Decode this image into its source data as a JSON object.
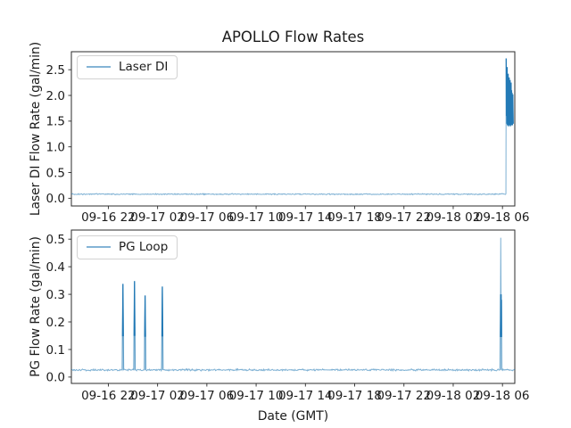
{
  "figure": {
    "xlabel": "Date (GMT)",
    "background_color": "#ffffff",
    "frame_color": "#2b2b2b",
    "line_color": "#1f77b4"
  },
  "chart_data": [
    {
      "type": "line",
      "title": "APOLLO Flow Rates",
      "ylabel": "Laser DI Flow Rate (gal/min)",
      "legend": [
        "Laser DI"
      ],
      "legend_loc": "upper left",
      "grid": false,
      "xlim": [
        0,
        36
      ],
      "ylim": [
        -0.15,
        2.85
      ],
      "x_ticks": [
        {
          "t": 3,
          "label": "09-16 22"
        },
        {
          "t": 7,
          "label": "09-17 02"
        },
        {
          "t": 11,
          "label": "09-17 06"
        },
        {
          "t": 15,
          "label": "09-17 10"
        },
        {
          "t": 19,
          "label": "09-17 14"
        },
        {
          "t": 23,
          "label": "09-17 18"
        },
        {
          "t": 27,
          "label": "09-17 22"
        },
        {
          "t": 31,
          "label": "09-18 02"
        },
        {
          "t": 35,
          "label": "09-18 06"
        }
      ],
      "y_ticks": [
        {
          "v": 0.0,
          "label": "0.0"
        },
        {
          "v": 0.5,
          "label": "0.5"
        },
        {
          "v": 1.0,
          "label": "1.0"
        },
        {
          "v": 1.5,
          "label": "1.5"
        },
        {
          "v": 2.0,
          "label": "2.0"
        },
        {
          "v": 2.5,
          "label": "2.5"
        }
      ],
      "baseline": {
        "value": 0.08,
        "from": 0,
        "to": 35.28,
        "noise": 0.013
      },
      "events": [
        {
          "points": [
            [
              35.28,
              0.09
            ],
            [
              35.3,
              2.72
            ],
            [
              35.32,
              1.6
            ],
            [
              35.34,
              2.45
            ],
            [
              35.36,
              1.45
            ],
            [
              35.38,
              2.55
            ],
            [
              35.4,
              1.42
            ],
            [
              35.42,
              2.3
            ],
            [
              35.44,
              1.48
            ],
            [
              35.46,
              2.42
            ],
            [
              35.48,
              1.4
            ],
            [
              35.5,
              2.25
            ],
            [
              35.52,
              1.45
            ],
            [
              35.54,
              2.35
            ],
            [
              35.56,
              1.42
            ],
            [
              35.58,
              2.2
            ],
            [
              35.6,
              1.5
            ],
            [
              35.62,
              2.3
            ],
            [
              35.64,
              1.4
            ],
            [
              35.66,
              2.15
            ],
            [
              35.68,
              1.55
            ],
            [
              35.7,
              2.25
            ],
            [
              35.72,
              1.42
            ],
            [
              35.74,
              2.1
            ],
            [
              35.76,
              1.48
            ],
            [
              35.78,
              2.05
            ],
            [
              35.81,
              1.42
            ],
            [
              35.84,
              2.02
            ],
            [
              35.87,
              1.45
            ]
          ]
        }
      ]
    },
    {
      "type": "line",
      "title": "",
      "ylabel": "PG Flow Rate (gal/min)",
      "legend": [
        "PG Loop"
      ],
      "legend_loc": "upper left",
      "grid": false,
      "xlim": [
        0,
        36
      ],
      "ylim": [
        -0.023,
        0.533
      ],
      "x_ticks": [
        {
          "t": 3,
          "label": "09-16 22"
        },
        {
          "t": 7,
          "label": "09-17 02"
        },
        {
          "t": 11,
          "label": "09-17 06"
        },
        {
          "t": 15,
          "label": "09-17 10"
        },
        {
          "t": 19,
          "label": "09-17 14"
        },
        {
          "t": 23,
          "label": "09-17 18"
        },
        {
          "t": 27,
          "label": "09-17 22"
        },
        {
          "t": 31,
          "label": "09-18 02"
        },
        {
          "t": 35,
          "label": "09-18 06"
        }
      ],
      "y_ticks": [
        {
          "v": 0.0,
          "label": "0.0"
        },
        {
          "v": 0.1,
          "label": "0.1"
        },
        {
          "v": 0.2,
          "label": "0.2"
        },
        {
          "v": 0.3,
          "label": "0.3"
        },
        {
          "v": 0.4,
          "label": "0.4"
        },
        {
          "v": 0.5,
          "label": "0.5"
        }
      ],
      "baseline": {
        "value": 0.026,
        "from": 0,
        "to": 36,
        "noise": 0.004
      },
      "events": [
        {
          "points": [
            [
              4.12,
              0.026
            ],
            [
              4.15,
              0.148
            ],
            [
              4.185,
              0.338
            ],
            [
              4.22,
              0.148
            ],
            [
              4.25,
              0.026
            ]
          ]
        },
        {
          "points": [
            [
              5.06,
              0.026
            ],
            [
              5.09,
              0.149
            ],
            [
              5.125,
              0.348
            ],
            [
              5.16,
              0.149
            ],
            [
              5.19,
              0.026
            ]
          ]
        },
        {
          "points": [
            [
              5.92,
              0.026
            ],
            [
              5.95,
              0.146
            ],
            [
              5.985,
              0.296
            ],
            [
              6.02,
              0.146
            ],
            [
              6.05,
              0.026
            ]
          ]
        },
        {
          "points": [
            [
              7.32,
              0.026
            ],
            [
              7.35,
              0.147
            ],
            [
              7.385,
              0.328
            ],
            [
              7.42,
              0.147
            ],
            [
              7.45,
              0.026
            ]
          ]
        },
        {
          "points": [
            [
              34.8,
              0.026
            ],
            [
              34.83,
              0.145
            ],
            [
              34.86,
              0.505
            ],
            [
              34.885,
              0.3
            ],
            [
              34.9,
              0.16
            ],
            [
              34.915,
              0.28
            ],
            [
              34.93,
              0.145
            ],
            [
              34.955,
              0.026
            ]
          ]
        }
      ]
    }
  ]
}
